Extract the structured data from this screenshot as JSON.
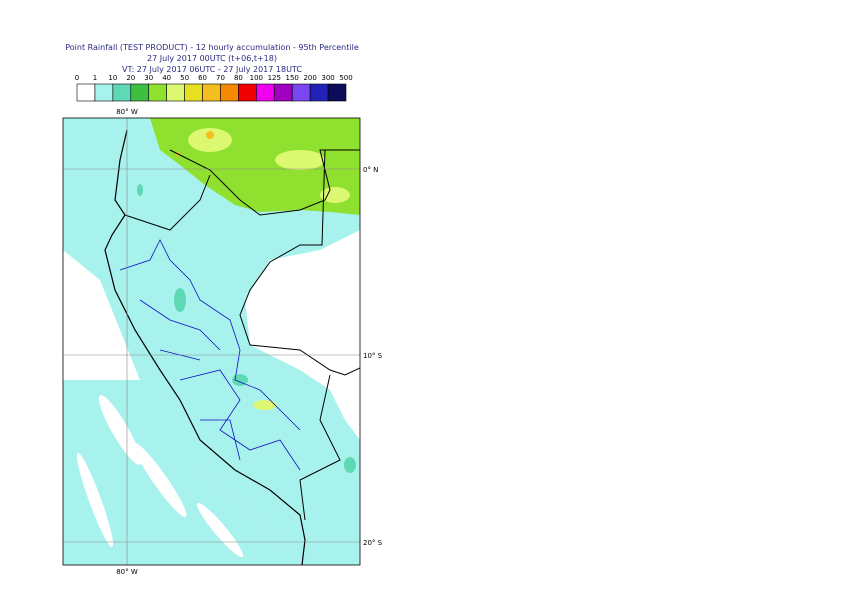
{
  "title": {
    "line1": "Point Rainfall (TEST PRODUCT) - 12 hourly accumulation - 95th Percentile",
    "line2": "27 July 2017 00UTC (t+06,t+18)",
    "line3": "VT: 27 July 2017 06UTC - 27 July 2017 18UTC"
  },
  "legend": {
    "labels": [
      0,
      1,
      10,
      20,
      30,
      40,
      50,
      60,
      70,
      80,
      100,
      125,
      150,
      200,
      300,
      500
    ],
    "colors": [
      "#ffffff",
      "#a8f2ee",
      "#5fd9b4",
      "#3fbf3f",
      "#90e030",
      "#dcf870",
      "#e6e020",
      "#f5be20",
      "#f58a00",
      "#f00000",
      "#ef00ef",
      "#a000c0",
      "#7a46f0",
      "#2222b8",
      "#0c0c5a"
    ]
  },
  "map": {
    "lon_label_top": "80° W",
    "lon_label_bottom": "80° W",
    "lat_labels": [
      "0° N",
      "10° S",
      "20° S"
    ]
  }
}
